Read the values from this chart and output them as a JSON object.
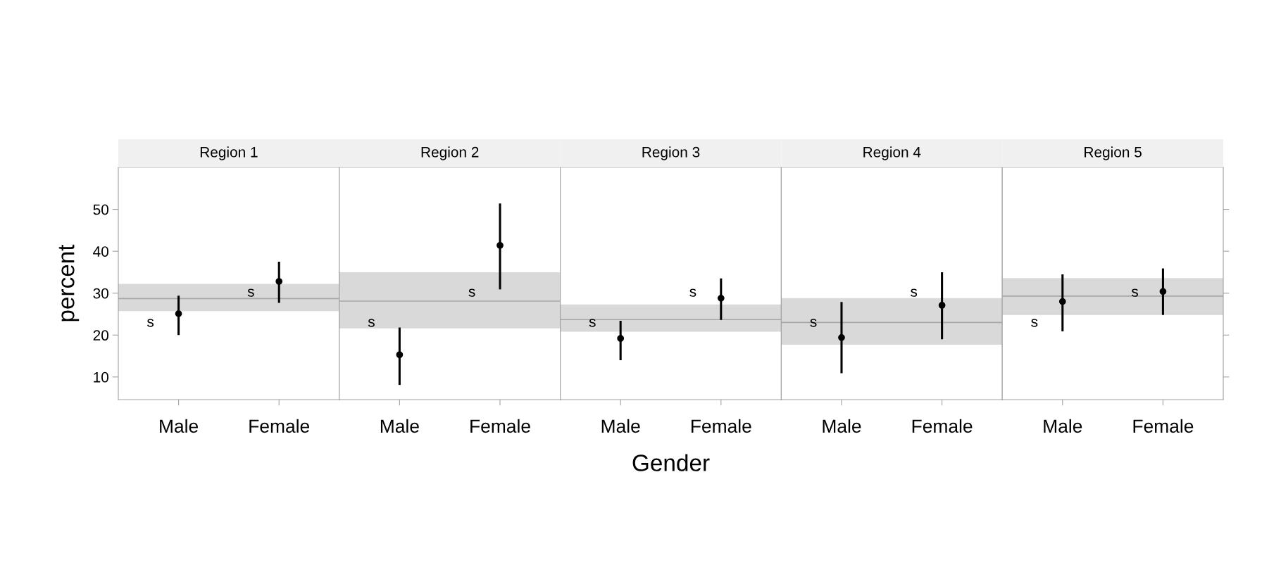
{
  "chart_data": [
    {
      "type": "scatter",
      "title": "Region 1",
      "ylabel": "percent",
      "categories": [
        "Male",
        "Female"
      ],
      "values": [
        25.1,
        32.8
      ],
      "errors": [
        [
          20.0,
          29.4
        ],
        [
          27.7,
          37.5
        ]
      ],
      "color": "#000000",
      "marker": "circle",
      "ylim": [
        4.6,
        60
      ],
      "yticks": [
        10,
        20,
        30,
        40,
        50
      ],
      "grid": false,
      "bands": [
        {
          "axis": "y",
          "from": 25.7,
          "to": 32.2,
          "color": "#d9d9d9"
        }
      ],
      "ref_lines": [
        {
          "axis": "y",
          "value": 28.7,
          "color": "#a6a6a6"
        }
      ],
      "annotations": [
        "s",
        "s"
      ]
    },
    {
      "type": "scatter",
      "title": "Region 2",
      "tick_labels": "x",
      "categories": [
        "Male",
        "Female"
      ],
      "values": [
        15.3,
        41.4
      ],
      "errors": [
        [
          8.1,
          21.8
        ],
        [
          30.9,
          51.4
        ]
      ],
      "color": "#000000",
      "marker": "circle",
      "ylim": [
        4.6,
        60
      ],
      "yticks": [
        10,
        20,
        30,
        40,
        50
      ],
      "grid": false,
      "bands": [
        {
          "axis": "y",
          "from": 21.6,
          "to": 35.0,
          "color": "#d9d9d9"
        }
      ],
      "ref_lines": [
        {
          "axis": "y",
          "value": 28.1,
          "color": "#a6a6a6"
        }
      ],
      "annotations": [
        "s",
        "s"
      ]
    },
    {
      "type": "scatter",
      "title": "Region 3",
      "xlabel": "Gender",
      "tick_labels": "x",
      "categories": [
        "Male",
        "Female"
      ],
      "values": [
        19.2,
        28.8
      ],
      "errors": [
        [
          14.0,
          23.4
        ],
        [
          23.6,
          33.5
        ]
      ],
      "color": "#000000",
      "marker": "circle",
      "ylim": [
        4.6,
        60
      ],
      "yticks": [
        10,
        20,
        30,
        40,
        50
      ],
      "grid": false,
      "bands": [
        {
          "axis": "y",
          "from": 20.8,
          "to": 27.3,
          "color": "#d9d9d9"
        }
      ],
      "ref_lines": [
        {
          "axis": "y",
          "value": 23.7,
          "color": "#a6a6a6"
        }
      ],
      "annotations": [
        "s",
        "s"
      ]
    },
    {
      "type": "scatter",
      "title": "Region 4",
      "tick_labels": "x",
      "categories": [
        "Male",
        "Female"
      ],
      "values": [
        19.4,
        27.1
      ],
      "errors": [
        [
          10.9,
          27.9
        ],
        [
          19.0,
          35.0
        ]
      ],
      "color": "#000000",
      "marker": "circle",
      "ylim": [
        4.6,
        60
      ],
      "yticks": [
        10,
        20,
        30,
        40,
        50
      ],
      "grid": false,
      "bands": [
        {
          "axis": "y",
          "from": 17.7,
          "to": 28.8,
          "color": "#d9d9d9"
        }
      ],
      "ref_lines": [
        {
          "axis": "y",
          "value": 23.0,
          "color": "#a6a6a6"
        }
      ],
      "annotations": [
        "s",
        "s"
      ]
    },
    {
      "type": "scatter",
      "title": "Region 5",
      "tick_labels": "x",
      "categories": [
        "Male",
        "Female"
      ],
      "values": [
        28.0,
        30.4
      ],
      "errors": [
        [
          20.9,
          34.5
        ],
        [
          24.8,
          35.9
        ]
      ],
      "color": "#000000",
      "marker": "circle",
      "ylim": [
        4.6,
        60
      ],
      "yticks": [
        10,
        20,
        30,
        40,
        50
      ],
      "grid": false,
      "bands": [
        {
          "axis": "y",
          "from": 24.8,
          "to": 33.6,
          "color": "#d9d9d9"
        }
      ],
      "ref_lines": [
        {
          "axis": "y",
          "value": 29.3,
          "color": "#a6a6a6"
        }
      ],
      "annotations": [
        "s",
        "s"
      ]
    }
  ]
}
